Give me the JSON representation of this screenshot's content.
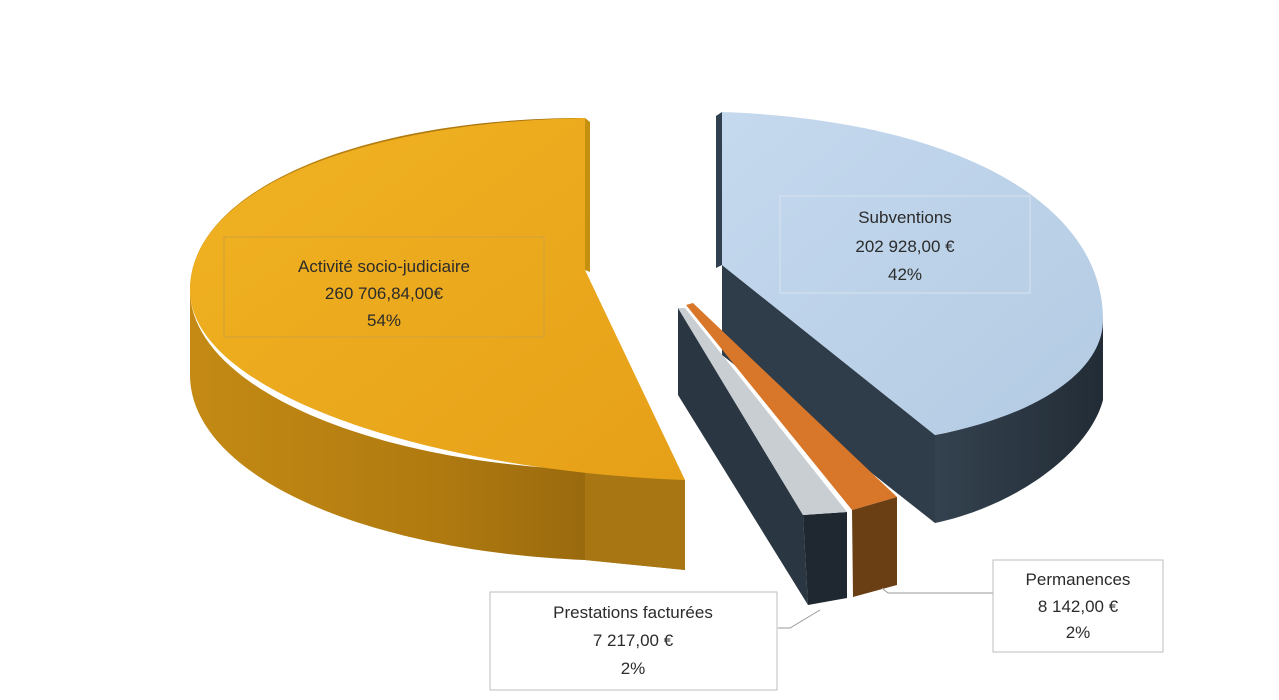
{
  "chart_data": {
    "type": "pie",
    "variant": "3d-exploded",
    "slices": [
      {
        "name": "Activité socio-judiciaire",
        "amount_label": "260 706,84,00€",
        "percent_label": "54%",
        "value": 260706.84,
        "percent": 54,
        "color": "#e9a81d"
      },
      {
        "name": "Subventions",
        "amount_label": "202 928,00 €",
        "percent_label": "42%",
        "value": 202928.0,
        "percent": 42,
        "color": "#bcd3ea"
      },
      {
        "name": "Permanences",
        "amount_label": "8 142,00 €",
        "percent_label": "2%",
        "value": 8142.0,
        "percent": 2,
        "color": "#d9782a"
      },
      {
        "name": "Prestations facturées",
        "amount_label": "7 217,00 €",
        "percent_label": "2%",
        "value": 7217.0,
        "percent": 2,
        "color": "#c7ccd1"
      }
    ],
    "side_color": "#2d3a47"
  }
}
